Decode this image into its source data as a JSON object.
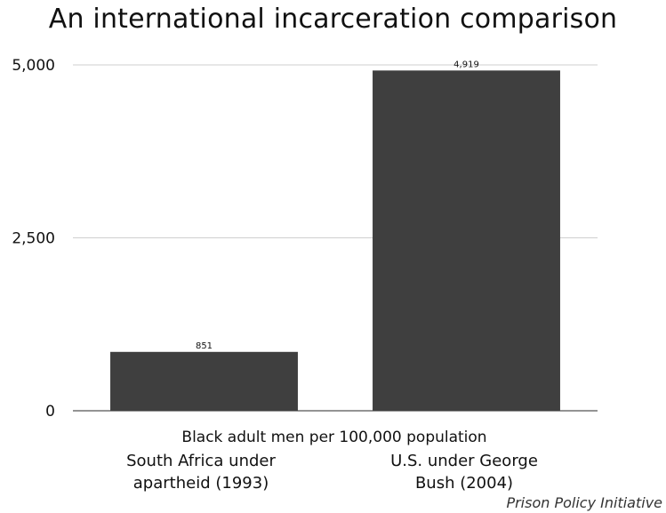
{
  "chart_data": {
    "type": "bar",
    "title": "An international incarceration comparison",
    "categories": [
      [
        "South Africa under",
        "apartheid (1993)"
      ],
      [
        "U.S. under George",
        "Bush (2004)"
      ]
    ],
    "values": [
      851,
      4919
    ],
    "data_labels": [
      "851",
      "4,919"
    ],
    "xlabel": "Black adult men per 100,000 population",
    "ylabel": "",
    "ylim": [
      0,
      5000
    ],
    "yticks": [
      0,
      2500,
      5000
    ],
    "ytick_labels": [
      "0",
      "2,500",
      "5,000"
    ],
    "grid": true,
    "bar_color": "#3f3f3f",
    "source": "Prison Policy Initiative"
  }
}
